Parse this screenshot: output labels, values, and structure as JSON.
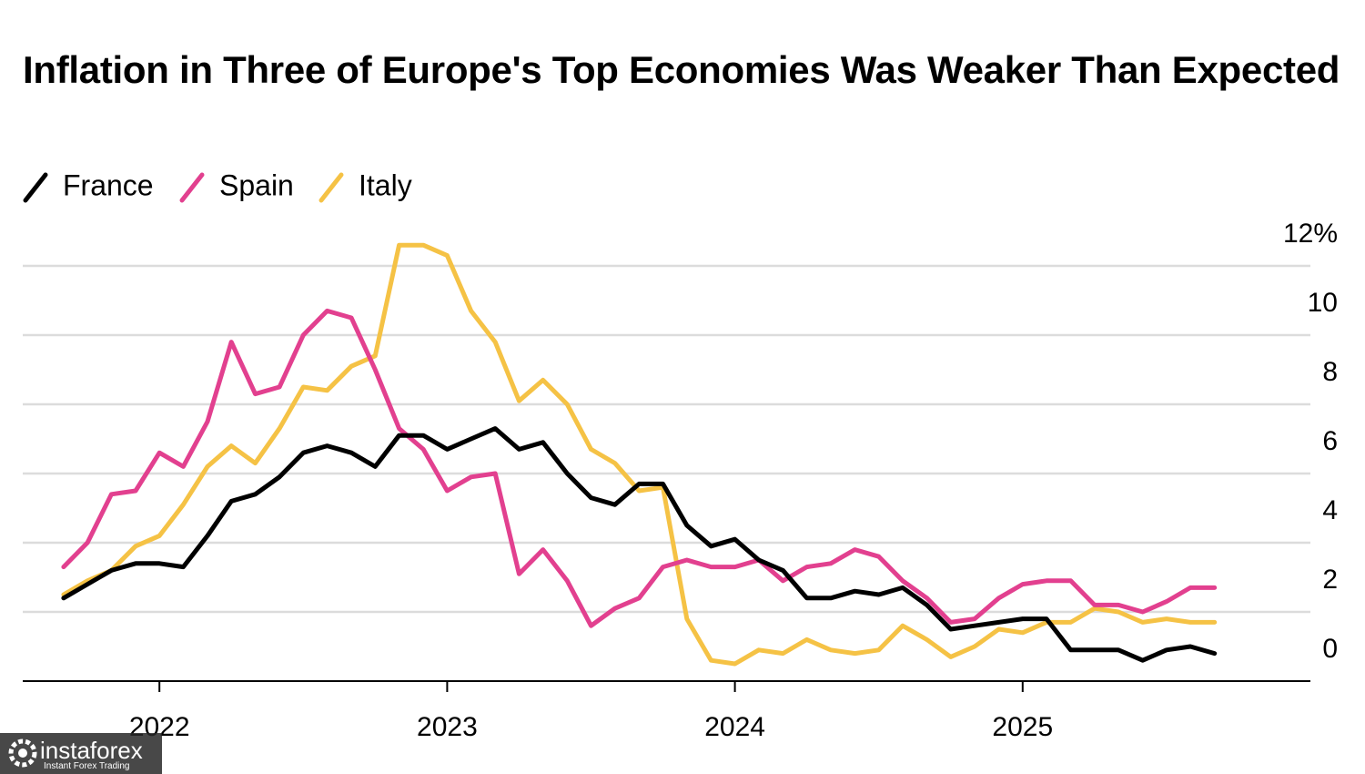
{
  "chart_data": {
    "type": "line",
    "title": "Inflation in Three of Europe's Top Economies Was Weaker Than Expected",
    "x": [
      2021.667,
      2021.75,
      2021.833,
      2021.917,
      2022,
      2022.083,
      2022.167,
      2022.25,
      2022.333,
      2022.417,
      2022.5,
      2022.583,
      2022.667,
      2022.75,
      2022.833,
      2022.917,
      2023,
      2023.083,
      2023.167,
      2023.25,
      2023.333,
      2023.417,
      2023.5,
      2023.583,
      2023.667,
      2023.75,
      2023.833,
      2023.917,
      2024,
      2024.083,
      2024.167,
      2024.25,
      2024.333,
      2024.417,
      2024.5,
      2024.583,
      2024.667,
      2024.75,
      2024.833,
      2024.917,
      2025,
      2025.083,
      2025.167,
      2025.25,
      2025.333,
      2025.417,
      2025.5,
      2025.583,
      2025.667
    ],
    "series": [
      {
        "name": "France",
        "color": "#000000",
        "values": [
          2.4,
          2.8,
          3.2,
          3.4,
          3.4,
          3.3,
          4.2,
          5.2,
          5.4,
          5.9,
          6.6,
          6.8,
          6.6,
          6.2,
          7.1,
          7.1,
          6.7,
          7.0,
          7.3,
          6.7,
          6.9,
          6.0,
          5.3,
          5.1,
          5.7,
          5.7,
          4.5,
          3.9,
          4.1,
          3.5,
          3.2,
          2.4,
          2.4,
          2.6,
          2.5,
          2.7,
          2.2,
          1.5,
          1.6,
          1.7,
          1.8,
          1.8,
          0.9,
          0.9,
          0.9,
          0.6,
          0.9,
          1.0,
          0.8
        ]
      },
      {
        "name": "Spain",
        "color": "#e2408f",
        "values": [
          3.3,
          4.0,
          5.4,
          5.5,
          6.6,
          6.2,
          7.5,
          9.8,
          8.3,
          8.5,
          10.0,
          10.7,
          10.5,
          9.0,
          7.3,
          6.7,
          5.5,
          5.9,
          6.0,
          3.1,
          3.8,
          2.9,
          1.6,
          2.1,
          2.4,
          3.3,
          3.5,
          3.3,
          3.3,
          3.5,
          2.9,
          3.3,
          3.4,
          3.8,
          3.6,
          2.9,
          2.4,
          1.7,
          1.8,
          2.4,
          2.8,
          2.9,
          2.9,
          2.2,
          2.2,
          2.0,
          2.3,
          2.7,
          2.7
        ]
      },
      {
        "name": "Italy",
        "color": "#f5c245",
        "values": [
          2.5,
          2.9,
          3.2,
          3.9,
          4.2,
          5.1,
          6.2,
          6.8,
          6.3,
          7.3,
          8.5,
          8.4,
          9.1,
          9.4,
          12.6,
          12.6,
          12.3,
          10.7,
          9.8,
          8.1,
          8.7,
          8.0,
          6.7,
          6.3,
          5.5,
          5.6,
          1.8,
          0.6,
          0.5,
          0.9,
          0.8,
          1.2,
          0.9,
          0.8,
          0.9,
          1.6,
          1.2,
          0.7,
          1.0,
          1.5,
          1.4,
          1.7,
          1.7,
          2.1,
          2.0,
          1.7,
          1.8,
          1.7,
          1.7
        ]
      }
    ],
    "xlim": [
      2021.525,
      2026
    ],
    "xticks": [
      2022,
      2023,
      2024,
      2025
    ],
    "ylim": [
      0,
      13
    ],
    "yticks": [
      0,
      2,
      4,
      6,
      8,
      10,
      {
        "value": 12,
        "label": "12%"
      }
    ],
    "grid": true,
    "legend": "top-left",
    "watermark": {
      "brand": "instaforex",
      "tagline": "Instant Forex Trading"
    }
  }
}
